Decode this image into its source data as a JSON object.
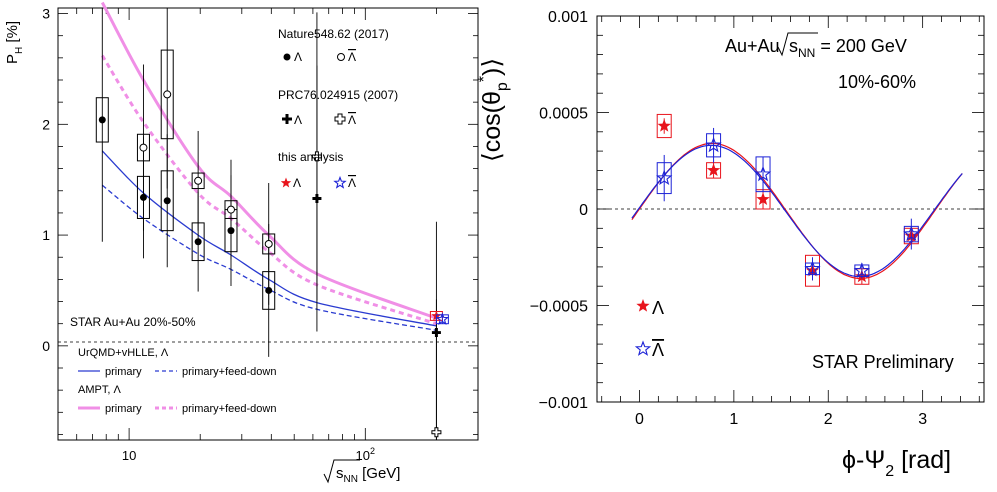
{
  "chart_data": [
    {
      "type": "scatter",
      "panel": "left",
      "xscale": "log",
      "xlim": [
        5,
        300
      ],
      "ylim": [
        -0.85,
        3.05
      ],
      "ylabel": "P",
      "ylabel_sub": "H",
      "ylabel_unit": " [%]",
      "xlabel_sqrt": "s",
      "xlabel_sub": "NN",
      "xlabel_unit": " [GeV]",
      "yticks": [
        0,
        1,
        2,
        3
      ],
      "xticks": [
        {
          "value": 10,
          "label": "10"
        },
        {
          "value": 100,
          "label": "10",
          "sup": "2"
        }
      ],
      "zero_line": "dashed",
      "system_label": "STAR Au+Au 20%-50%",
      "legend": {
        "nature_title": "Nature548.62 (2017)",
        "prc_title": "PRC76.024915 (2007)",
        "this_title": "this analysis",
        "lambda": "Λ",
        "antilambda": "Λ"
      },
      "model_legend": {
        "urqmd_title": "UrQMD+vHLLE, Λ",
        "ampt_title": "AMPT, Λ",
        "primary": "primary",
        "feed_down": "primary+feed-down"
      },
      "series": [
        {
          "name": "Λ",
          "group": "Nature548.62 (2017)",
          "marker": "filled-circle",
          "color": "#000000",
          "points": [
            {
              "x": 7.7,
              "y": 2.04,
              "stat": 1.1,
              "sys": 0.2
            },
            {
              "x": 11.5,
              "y": 1.34,
              "stat": 0.55,
              "sys": 0.19
            },
            {
              "x": 14.5,
              "y": 1.31,
              "stat": 0.6,
              "sys": 0.27
            },
            {
              "x": 19.6,
              "y": 0.94,
              "stat": 0.45,
              "sys": 0.17
            },
            {
              "x": 27,
              "y": 1.04,
              "stat": 0.5,
              "sys": 0.19
            },
            {
              "x": 39,
              "y": 0.5,
              "stat": 0.6,
              "sys": 0.17
            }
          ]
        },
        {
          "name": "Λ",
          "group": "Nature548.62 (2017)",
          "marker": "open-circle",
          "color": "#000000",
          "points": [
            {
              "x": 11.5,
              "y": 1.79,
              "stat": 0.75,
              "sys": 0.12
            },
            {
              "x": 14.5,
              "y": 2.27,
              "stat": 0.85,
              "sys": 0.4
            },
            {
              "x": 19.6,
              "y": 1.49,
              "stat": 0.45,
              "sys": 0.07
            },
            {
              "x": 27,
              "y": 1.23,
              "stat": 0.45,
              "sys": 0.08
            },
            {
              "x": 39,
              "y": 0.92,
              "stat": 0.55,
              "sys": 0.09
            }
          ]
        },
        {
          "name": "Λ",
          "group": "PRC76.024915 (2007)",
          "marker": "filled-cross",
          "color": "#000000",
          "points": [
            {
              "x": 62.4,
              "y": 1.33,
              "stat": 1.2
            },
            {
              "x": 200,
              "y": 0.12,
              "stat": 1.0
            }
          ]
        },
        {
          "name": "Λ",
          "group": "PRC76.024915 (2007)",
          "marker": "open-cross",
          "color": "#000000",
          "points": [
            {
              "x": 62.4,
              "y": 1.71,
              "stat": 1.3
            },
            {
              "x": 200,
              "y": -0.78,
              "stat": 1.2
            }
          ]
        },
        {
          "name": "Λ",
          "group": "this analysis",
          "marker": "filled-star",
          "color": "#e8141c",
          "points": [
            {
              "x": 200,
              "y": 0.27,
              "stat": 0.04,
              "sys": 0.04
            }
          ]
        },
        {
          "name": "Λ",
          "group": "this analysis",
          "marker": "open-star",
          "color": "#1c22d6",
          "points": [
            {
              "x": 212,
              "y": 0.24,
              "stat": 0.04,
              "sys": 0.04
            }
          ]
        }
      ],
      "curves": [
        {
          "name": "primary",
          "model": "UrQMD+vHLLE, Λ",
          "style": "solid",
          "color": "#2a3bd0",
          "x": [
            7.7,
            11.5,
            19.6,
            27,
            39,
            62.4,
            200
          ],
          "y": [
            1.76,
            1.38,
            1.0,
            0.82,
            0.6,
            0.39,
            0.18
          ]
        },
        {
          "name": "primary+feed-down",
          "model": "UrQMD+vHLLE, Λ",
          "style": "dashed",
          "color": "#2a3bd0",
          "x": [
            7.7,
            11.5,
            19.6,
            27,
            39,
            62.4,
            200
          ],
          "y": [
            1.45,
            1.15,
            0.83,
            0.69,
            0.51,
            0.33,
            0.14
          ]
        },
        {
          "name": "primary",
          "model": "AMPT, Λ",
          "style": "solid",
          "color": "#f08fe6",
          "x": [
            7.7,
            11.5,
            19.6,
            27,
            39,
            62.4,
            200
          ],
          "y": [
            3.1,
            2.4,
            1.62,
            1.35,
            1.0,
            0.65,
            0.25
          ]
        },
        {
          "name": "primary+feed-down",
          "model": "AMPT, Λ",
          "style": "dashed",
          "color": "#f08fe6",
          "x": [
            7.7,
            11.5,
            19.6,
            27,
            39,
            62.4,
            200
          ],
          "y": [
            2.62,
            2.02,
            1.38,
            1.15,
            0.85,
            0.55,
            0.2
          ]
        }
      ]
    },
    {
      "type": "scatter",
      "panel": "right",
      "xlim": [
        -0.45,
        3.65
      ],
      "ylim": [
        -0.001,
        0.001
      ],
      "xlabel": "ϕ-Ψ",
      "xlabel_sub": "2",
      "xlabel_unit": " [rad]",
      "ylabel_left": "⟨cos(θ",
      "ylabel_sub": "p",
      "ylabel_sup": "*",
      "ylabel_right": ")⟩",
      "xticks": [
        0,
        1,
        2,
        3
      ],
      "yticks": [
        {
          "value": 0.001,
          "label": "0.001"
        },
        {
          "value": 0.0005,
          "label": "0.0005"
        },
        {
          "value": 0,
          "label": "0"
        },
        {
          "value": -0.0005,
          "label": "−0.0005"
        },
        {
          "value": -0.001,
          "label": "−0.001"
        }
      ],
      "zero_line": "dashed",
      "system_label_prefix": "Au+Au",
      "system_label_sqrt": "s",
      "system_label_sub": "NN",
      "system_label_suffix": " = 200 GeV",
      "centrality_label": "10%-60%",
      "preliminary_label": "STAR Preliminary",
      "legend": {
        "lambda": "Λ",
        "antilambda": "Λ"
      },
      "series": [
        {
          "name": "Λ",
          "marker": "filled-star",
          "color": "#e8141c",
          "points": [
            {
              "x": 0.262,
              "y": 0.00043,
              "stat": 4e-05,
              "sys": 6e-05
            },
            {
              "x": 0.785,
              "y": 0.0002,
              "stat": 4e-05,
              "sys": 4e-05
            },
            {
              "x": 1.309,
              "y": 5e-05,
              "stat": 5e-05,
              "sys": 5e-05
            },
            {
              "x": 1.833,
              "y": -0.00032,
              "stat": 5e-05,
              "sys": 8e-05
            },
            {
              "x": 2.356,
              "y": -0.00035,
              "stat": 4e-05,
              "sys": 4e-05
            },
            {
              "x": 2.88,
              "y": -0.00014,
              "stat": 4e-05,
              "sys": 4e-05
            }
          ]
        },
        {
          "name": "Λ",
          "marker": "open-star",
          "color": "#1c22d6",
          "points": [
            {
              "x": 0.262,
              "y": 0.00016,
              "stat": 0.00012,
              "sys": 8e-05
            },
            {
              "x": 0.785,
              "y": 0.00033,
              "stat": 9e-05,
              "sys": 6e-05
            },
            {
              "x": 1.309,
              "y": 0.00018,
              "stat": 9e-05,
              "sys": 9e-05
            },
            {
              "x": 1.833,
              "y": -0.00031,
              "stat": 6e-05,
              "sys": 3e-05
            },
            {
              "x": 2.356,
              "y": -0.00032,
              "stat": 4e-05,
              "sys": 3e-05
            },
            {
              "x": 2.88,
              "y": -0.00013,
              "stat": 8e-05,
              "sys": 4e-05
            }
          ]
        }
      ],
      "curves": [
        {
          "name": "Λ fit",
          "color": "#e8141c",
          "function": "offset + amplitude*sin(2x + phase)",
          "offset": -1e-05,
          "amplitude": 0.00035,
          "phase": 0.03,
          "range": [
            -0.08,
            3.42
          ]
        },
        {
          "name": "Λ fit",
          "color": "#1c22d6",
          "function": "offset + amplitude*sin(2x + phase)",
          "offset": -1e-05,
          "amplitude": 0.00034,
          "phase": 0.05,
          "range": [
            -0.08,
            3.42
          ]
        }
      ]
    }
  ]
}
